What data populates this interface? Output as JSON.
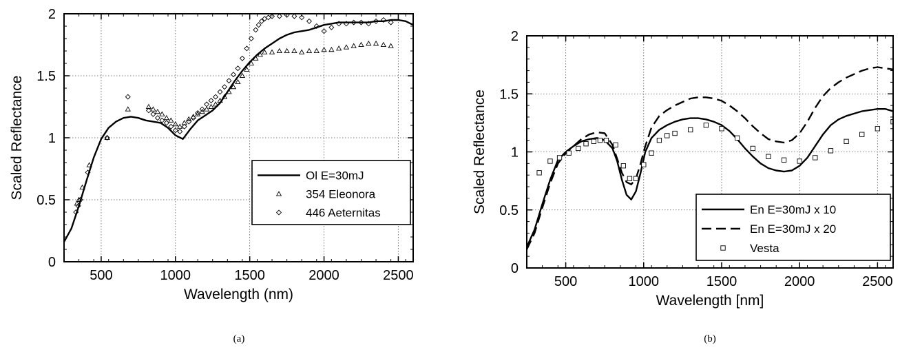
{
  "chart_data": [
    {
      "id": "a",
      "type": "line",
      "caption": "(a)",
      "xlabel": "Wavelength (nm)",
      "ylabel": "Scaled Reflectance",
      "xlim": [
        250,
        2600
      ],
      "ylim": [
        0,
        2
      ],
      "xticks": [
        500,
        1000,
        1500,
        2000,
        2500
      ],
      "yticks": [
        0,
        0.5,
        1,
        1.5,
        2
      ],
      "xtick_labels": [
        "500",
        "1000",
        "1500",
        "2000",
        "2500"
      ],
      "ytick_labels": [
        "0",
        "0.5",
        "1",
        "1.5",
        "2"
      ],
      "grid": true,
      "legend_position": "bottom-right",
      "series": [
        {
          "name": "Ol E=30mJ",
          "style": "solid",
          "x": [
            250,
            300,
            350,
            400,
            450,
            500,
            550,
            600,
            650,
            700,
            750,
            800,
            850,
            900,
            950,
            1000,
            1050,
            1100,
            1150,
            1200,
            1250,
            1300,
            1350,
            1400,
            1450,
            1500,
            1550,
            1600,
            1650,
            1700,
            1750,
            1800,
            1850,
            1900,
            1950,
            2000,
            2050,
            2100,
            2150,
            2200,
            2250,
            2300,
            2350,
            2400,
            2450,
            2500,
            2550,
            2600
          ],
          "y": [
            0.16,
            0.27,
            0.45,
            0.65,
            0.84,
            0.99,
            1.08,
            1.13,
            1.16,
            1.17,
            1.16,
            1.14,
            1.13,
            1.12,
            1.08,
            1.02,
            0.99,
            1.07,
            1.14,
            1.18,
            1.22,
            1.28,
            1.37,
            1.46,
            1.54,
            1.61,
            1.67,
            1.72,
            1.76,
            1.8,
            1.83,
            1.85,
            1.86,
            1.87,
            1.89,
            1.91,
            1.92,
            1.93,
            1.93,
            1.93,
            1.93,
            1.93,
            1.94,
            1.94,
            1.95,
            1.95,
            1.94,
            1.91
          ]
        },
        {
          "name": "354 Eleonora",
          "style": "marker-triangle",
          "x": [
            337,
            350,
            373,
            420,
            540,
            680,
            820,
            850,
            880,
            910,
            940,
            970,
            1000,
            1030,
            1060,
            1090,
            1120,
            1150,
            1180,
            1210,
            1240,
            1270,
            1300,
            1330,
            1360,
            1390,
            1420,
            1450,
            1480,
            1510,
            1540,
            1570,
            1600,
            1650,
            1700,
            1750,
            1800,
            1850,
            1900,
            1950,
            2000,
            2050,
            2100,
            2150,
            2200,
            2250,
            2300,
            2350,
            2400,
            2450
          ],
          "y": [
            0.47,
            0.5,
            0.6,
            0.78,
            1.0,
            1.23,
            1.25,
            1.23,
            1.21,
            1.19,
            1.16,
            1.14,
            1.11,
            1.09,
            1.12,
            1.15,
            1.17,
            1.19,
            1.21,
            1.23,
            1.25,
            1.27,
            1.3,
            1.33,
            1.37,
            1.41,
            1.45,
            1.5,
            1.55,
            1.6,
            1.64,
            1.67,
            1.69,
            1.69,
            1.7,
            1.7,
            1.7,
            1.69,
            1.7,
            1.7,
            1.71,
            1.71,
            1.72,
            1.73,
            1.74,
            1.75,
            1.76,
            1.76,
            1.75,
            1.74
          ]
        },
        {
          "name": "446 Aeternitas",
          "style": "marker-diamond",
          "x": [
            330,
            345,
            360,
            410,
            540,
            680,
            820,
            850,
            880,
            910,
            940,
            970,
            1000,
            1030,
            1060,
            1090,
            1120,
            1150,
            1180,
            1210,
            1240,
            1270,
            1300,
            1330,
            1360,
            1390,
            1420,
            1450,
            1480,
            1510,
            1540,
            1560,
            1580,
            1600,
            1625,
            1650,
            1700,
            1750,
            1800,
            1850,
            1900,
            1950,
            2000,
            2050,
            2100,
            2150,
            2200,
            2250,
            2300,
            2350,
            2400,
            2450
          ],
          "y": [
            0.4,
            0.45,
            0.5,
            0.72,
            1.0,
            1.33,
            1.22,
            1.19,
            1.16,
            1.14,
            1.12,
            1.09,
            1.06,
            1.05,
            1.09,
            1.13,
            1.16,
            1.2,
            1.23,
            1.27,
            1.3,
            1.33,
            1.37,
            1.41,
            1.46,
            1.51,
            1.56,
            1.64,
            1.72,
            1.8,
            1.87,
            1.91,
            1.94,
            1.96,
            1.97,
            1.98,
            1.98,
            1.99,
            1.98,
            1.97,
            1.94,
            1.9,
            1.86,
            1.89,
            1.92,
            1.92,
            1.93,
            1.93,
            1.92,
            1.94,
            1.95,
            1.93
          ]
        }
      ]
    },
    {
      "id": "b",
      "type": "line",
      "caption": "(b)",
      "xlabel": "Wavelength [nm]",
      "ylabel": "Scaled Reflectance",
      "xlim": [
        250,
        2600
      ],
      "ylim": [
        0,
        2
      ],
      "xticks": [
        500,
        1000,
        1500,
        2000,
        2500
      ],
      "yticks": [
        0,
        0.5,
        1,
        1.5,
        2
      ],
      "xtick_labels": [
        "500",
        "1000",
        "1500",
        "2000",
        "2500"
      ],
      "ytick_labels": [
        "0",
        "0.5",
        "1",
        "1.5",
        "2"
      ],
      "grid": true,
      "legend_position": "bottom-right",
      "series": [
        {
          "name": "En E=30mJ x 10",
          "style": "solid",
          "x": [
            250,
            300,
            350,
            400,
            450,
            500,
            550,
            600,
            650,
            700,
            750,
            800,
            830,
            860,
            890,
            920,
            950,
            980,
            1010,
            1050,
            1100,
            1150,
            1200,
            1250,
            1300,
            1350,
            1400,
            1450,
            1500,
            1550,
            1600,
            1650,
            1700,
            1750,
            1800,
            1850,
            1900,
            1950,
            2000,
            2050,
            2100,
            2150,
            2200,
            2250,
            2300,
            2350,
            2400,
            2450,
            2500,
            2550,
            2600
          ],
          "y": [
            0.18,
            0.33,
            0.55,
            0.76,
            0.93,
            1.0,
            1.05,
            1.09,
            1.11,
            1.12,
            1.1,
            1.03,
            0.92,
            0.76,
            0.63,
            0.59,
            0.66,
            0.82,
            1.0,
            1.12,
            1.19,
            1.23,
            1.26,
            1.28,
            1.29,
            1.29,
            1.28,
            1.26,
            1.23,
            1.18,
            1.11,
            1.03,
            0.96,
            0.9,
            0.86,
            0.84,
            0.83,
            0.84,
            0.88,
            0.95,
            1.05,
            1.15,
            1.23,
            1.28,
            1.31,
            1.33,
            1.35,
            1.36,
            1.37,
            1.37,
            1.35
          ]
        },
        {
          "name": "En E=30mJ x 20",
          "style": "dashed",
          "x": [
            250,
            300,
            350,
            400,
            450,
            500,
            550,
            600,
            650,
            700,
            750,
            800,
            830,
            860,
            890,
            920,
            950,
            980,
            1010,
            1050,
            1100,
            1150,
            1200,
            1250,
            1300,
            1350,
            1400,
            1450,
            1500,
            1550,
            1600,
            1650,
            1700,
            1750,
            1800,
            1850,
            1900,
            1950,
            2000,
            2050,
            2100,
            2150,
            2200,
            2250,
            2300,
            2350,
            2400,
            2450,
            2500,
            2550,
            2600
          ],
          "y": [
            0.16,
            0.3,
            0.52,
            0.73,
            0.9,
            0.99,
            1.05,
            1.11,
            1.15,
            1.17,
            1.16,
            1.06,
            0.94,
            0.82,
            0.74,
            0.72,
            0.77,
            0.9,
            1.05,
            1.21,
            1.31,
            1.36,
            1.4,
            1.43,
            1.46,
            1.47,
            1.47,
            1.46,
            1.44,
            1.4,
            1.35,
            1.29,
            1.22,
            1.16,
            1.11,
            1.09,
            1.08,
            1.1,
            1.16,
            1.26,
            1.38,
            1.48,
            1.55,
            1.6,
            1.64,
            1.67,
            1.7,
            1.72,
            1.73,
            1.72,
            1.71
          ]
        },
        {
          "name": "Vesta",
          "style": "marker-square",
          "x": [
            330,
            400,
            460,
            520,
            580,
            630,
            680,
            720,
            760,
            820,
            870,
            910,
            950,
            1000,
            1050,
            1100,
            1150,
            1200,
            1300,
            1400,
            1500,
            1600,
            1700,
            1800,
            1900,
            2000,
            2100,
            2200,
            2300,
            2400,
            2500,
            2600
          ],
          "y": [
            0.82,
            0.92,
            0.95,
            0.99,
            1.03,
            1.07,
            1.09,
            1.1,
            1.1,
            1.06,
            0.88,
            0.77,
            0.77,
            0.89,
            0.99,
            1.1,
            1.14,
            1.16,
            1.19,
            1.23,
            1.2,
            1.12,
            1.03,
            0.96,
            0.93,
            0.92,
            0.95,
            1.01,
            1.09,
            1.15,
            1.2,
            1.26
          ]
        }
      ]
    }
  ]
}
